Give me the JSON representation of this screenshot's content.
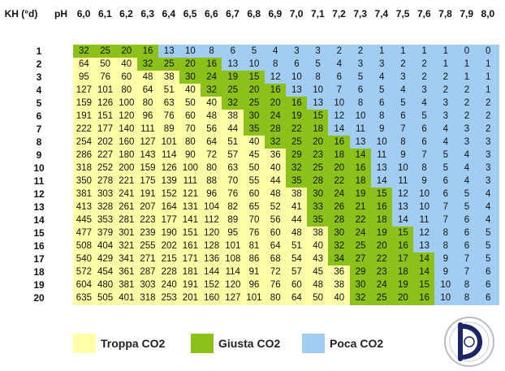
{
  "chart_data": {
    "type": "table",
    "row_header": "KH (°d)",
    "col_header": "pH",
    "columns": [
      "6,0",
      "6,1",
      "6,2",
      "6,3",
      "6,4",
      "6,5",
      "6,6",
      "6,7",
      "6,8",
      "6,9",
      "7,0",
      "7,1",
      "7,2",
      "7,3",
      "7,4",
      "7,5",
      "7,6",
      "7,8",
      "7,9",
      "8,0"
    ],
    "rows": [
      "1",
      "2",
      "3",
      "4",
      "5",
      "6",
      "7",
      "8",
      "9",
      "10",
      "11",
      "12",
      "13",
      "14",
      "15",
      "16",
      "17",
      "18",
      "19",
      "20"
    ],
    "values": [
      [
        32,
        25,
        20,
        16,
        13,
        10,
        8,
        6,
        5,
        4,
        3,
        3,
        2,
        2,
        1,
        1,
        1,
        1,
        0,
        0
      ],
      [
        64,
        50,
        40,
        32,
        25,
        20,
        16,
        13,
        10,
        8,
        6,
        5,
        4,
        3,
        3,
        2,
        2,
        1,
        1,
        1
      ],
      [
        95,
        76,
        60,
        48,
        38,
        30,
        24,
        19,
        15,
        12,
        10,
        8,
        6,
        5,
        4,
        3,
        2,
        2,
        1,
        1
      ],
      [
        127,
        101,
        80,
        64,
        51,
        40,
        32,
        25,
        20,
        16,
        13,
        10,
        7,
        6,
        5,
        4,
        3,
        2,
        2,
        1
      ],
      [
        159,
        126,
        100,
        80,
        63,
        50,
        40,
        32,
        25,
        20,
        16,
        13,
        10,
        8,
        6,
        5,
        4,
        3,
        2,
        2
      ],
      [
        191,
        151,
        120,
        96,
        76,
        60,
        48,
        38,
        30,
        24,
        19,
        15,
        12,
        10,
        8,
        6,
        5,
        3,
        2,
        2
      ],
      [
        222,
        177,
        140,
        111,
        89,
        70,
        56,
        44,
        35,
        28,
        22,
        18,
        14,
        11,
        9,
        7,
        6,
        4,
        3,
        2
      ],
      [
        254,
        202,
        160,
        127,
        101,
        80,
        64,
        51,
        40,
        32,
        25,
        20,
        16,
        13,
        10,
        8,
        6,
        4,
        3,
        3
      ],
      [
        286,
        227,
        180,
        143,
        114,
        90,
        72,
        57,
        45,
        36,
        29,
        23,
        18,
        14,
        11,
        9,
        7,
        5,
        4,
        3
      ],
      [
        318,
        252,
        200,
        159,
        126,
        100,
        80,
        63,
        50,
        40,
        32,
        25,
        20,
        16,
        13,
        10,
        8,
        5,
        4,
        3
      ],
      [
        350,
        278,
        221,
        175,
        139,
        111,
        88,
        70,
        55,
        44,
        35,
        28,
        22,
        18,
        14,
        11,
        9,
        6,
        4,
        3
      ],
      [
        381,
        303,
        241,
        191,
        152,
        121,
        96,
        76,
        60,
        48,
        38,
        30,
        24,
        19,
        15,
        12,
        10,
        6,
        5,
        4
      ],
      [
        413,
        328,
        261,
        207,
        164,
        131,
        104,
        82,
        65,
        52,
        41,
        33,
        26,
        21,
        16,
        13,
        10,
        7,
        5,
        4
      ],
      [
        445,
        353,
        281,
        223,
        177,
        141,
        112,
        89,
        70,
        56,
        44,
        35,
        28,
        22,
        18,
        14,
        11,
        7,
        6,
        4
      ],
      [
        477,
        379,
        301,
        239,
        190,
        151,
        120,
        95,
        76,
        60,
        48,
        38,
        30,
        24,
        19,
        15,
        12,
        8,
        6,
        5
      ],
      [
        508,
        404,
        321,
        255,
        202,
        161,
        128,
        101,
        81,
        64,
        51,
        40,
        32,
        25,
        20,
        16,
        13,
        8,
        6,
        5
      ],
      [
        540,
        429,
        341,
        271,
        215,
        171,
        136,
        108,
        86,
        68,
        54,
        43,
        34,
        27,
        22,
        17,
        14,
        9,
        7,
        5
      ],
      [
        572,
        454,
        361,
        287,
        228,
        181,
        144,
        114,
        91,
        72,
        57,
        45,
        36,
        29,
        23,
        18,
        14,
        9,
        7,
        6
      ],
      [
        604,
        480,
        381,
        303,
        240,
        191,
        152,
        120,
        96,
        76,
        60,
        48,
        38,
        30,
        24,
        19,
        15,
        10,
        8,
        6
      ],
      [
        635,
        505,
        401,
        318,
        253,
        201,
        160,
        127,
        101,
        80,
        64,
        50,
        40,
        32,
        25,
        20,
        16,
        10,
        8,
        6
      ]
    ],
    "zones": [
      [
        1,
        1,
        1,
        1,
        2,
        2,
        2,
        2,
        2,
        2,
        2,
        2,
        2,
        2,
        2,
        2,
        2,
        2,
        2,
        2
      ],
      [
        0,
        0,
        0,
        1,
        1,
        1,
        1,
        2,
        2,
        2,
        2,
        2,
        2,
        2,
        2,
        2,
        2,
        2,
        2,
        2
      ],
      [
        0,
        0,
        0,
        0,
        0,
        1,
        1,
        1,
        1,
        2,
        2,
        2,
        2,
        2,
        2,
        2,
        2,
        2,
        2,
        2
      ],
      [
        0,
        0,
        0,
        0,
        0,
        0,
        1,
        1,
        1,
        1,
        2,
        2,
        2,
        2,
        2,
        2,
        2,
        2,
        2,
        2
      ],
      [
        0,
        0,
        0,
        0,
        0,
        0,
        0,
        1,
        1,
        1,
        1,
        2,
        2,
        2,
        2,
        2,
        2,
        2,
        2,
        2
      ],
      [
        0,
        0,
        0,
        0,
        0,
        0,
        0,
        0,
        1,
        1,
        1,
        1,
        2,
        2,
        2,
        2,
        2,
        2,
        2,
        2
      ],
      [
        0,
        0,
        0,
        0,
        0,
        0,
        0,
        0,
        1,
        1,
        1,
        1,
        2,
        2,
        2,
        2,
        2,
        2,
        2,
        2
      ],
      [
        0,
        0,
        0,
        0,
        0,
        0,
        0,
        0,
        0,
        1,
        1,
        1,
        1,
        2,
        2,
        2,
        2,
        2,
        2,
        2
      ],
      [
        0,
        0,
        0,
        0,
        0,
        0,
        0,
        0,
        0,
        0,
        1,
        1,
        1,
        1,
        2,
        2,
        2,
        2,
        2,
        2
      ],
      [
        0,
        0,
        0,
        0,
        0,
        0,
        0,
        0,
        0,
        0,
        1,
        1,
        1,
        1,
        2,
        2,
        2,
        2,
        2,
        2
      ],
      [
        0,
        0,
        0,
        0,
        0,
        0,
        0,
        0,
        0,
        0,
        1,
        1,
        1,
        1,
        2,
        2,
        2,
        2,
        2,
        2
      ],
      [
        0,
        0,
        0,
        0,
        0,
        0,
        0,
        0,
        0,
        0,
        0,
        1,
        1,
        1,
        1,
        2,
        2,
        2,
        2,
        2
      ],
      [
        0,
        0,
        0,
        0,
        0,
        0,
        0,
        0,
        0,
        0,
        0,
        1,
        1,
        1,
        1,
        2,
        2,
        2,
        2,
        2
      ],
      [
        0,
        0,
        0,
        0,
        0,
        0,
        0,
        0,
        0,
        0,
        0,
        1,
        1,
        1,
        1,
        2,
        2,
        2,
        2,
        2
      ],
      [
        0,
        0,
        0,
        0,
        0,
        0,
        0,
        0,
        0,
        0,
        0,
        0,
        1,
        1,
        1,
        1,
        2,
        2,
        2,
        2
      ],
      [
        0,
        0,
        0,
        0,
        0,
        0,
        0,
        0,
        0,
        0,
        0,
        0,
        1,
        1,
        1,
        1,
        2,
        2,
        2,
        2
      ],
      [
        0,
        0,
        0,
        0,
        0,
        0,
        0,
        0,
        0,
        0,
        0,
        0,
        1,
        1,
        1,
        1,
        1,
        2,
        2,
        2
      ],
      [
        0,
        0,
        0,
        0,
        0,
        0,
        0,
        0,
        0,
        0,
        0,
        0,
        0,
        1,
        1,
        1,
        1,
        2,
        2,
        2
      ],
      [
        0,
        0,
        0,
        0,
        0,
        0,
        0,
        0,
        0,
        0,
        0,
        0,
        0,
        1,
        1,
        1,
        1,
        2,
        2,
        2
      ],
      [
        0,
        0,
        0,
        0,
        0,
        0,
        0,
        0,
        0,
        0,
        0,
        0,
        0,
        1,
        1,
        1,
        1,
        2,
        2,
        2
      ]
    ],
    "zone_colors": [
      "#ffffa8",
      "#8cc11a",
      "#a2cdf2"
    ],
    "legend": [
      {
        "label": "Troppa CO2",
        "color": "#ffffa8"
      },
      {
        "label": "Giusta CO2",
        "color": "#8cc11a"
      },
      {
        "label": "Poca CO2",
        "color": "#a2cdf2"
      }
    ],
    "legend_position": "bottom"
  },
  "logo": {
    "name": "aquarium-logo-icon",
    "letter": "D"
  }
}
